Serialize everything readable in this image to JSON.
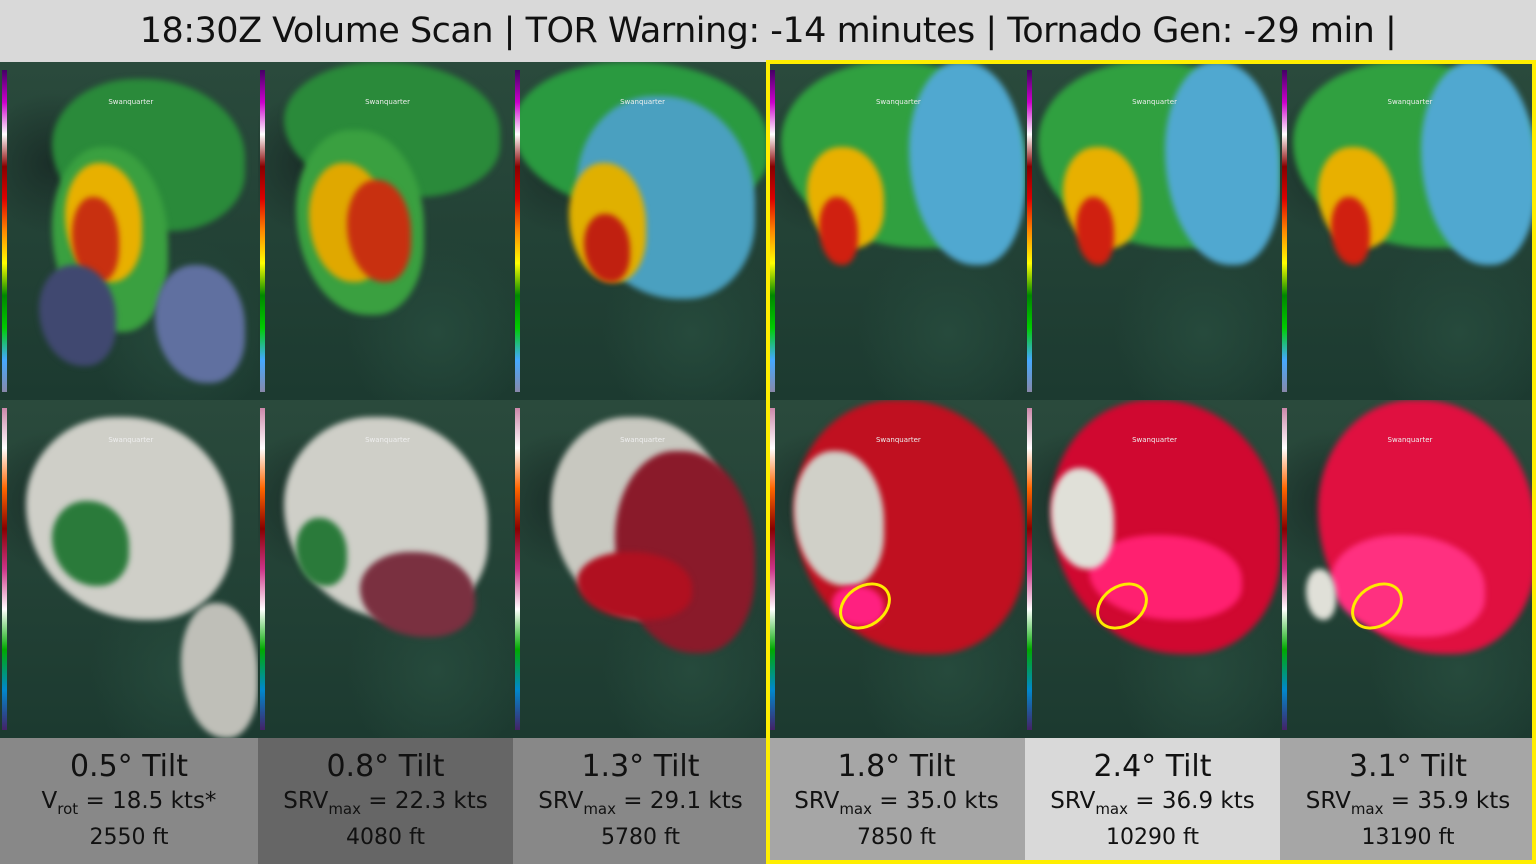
{
  "title": "18:30Z Volume Scan | TOR Warning: -14 minutes | Tornado Gen: -29 min |",
  "town_label": "Swanquarter",
  "highlight_color": "#ffee00",
  "columns": [
    {
      "tilt": "0.5° Tilt",
      "metric": "V",
      "metric_sub": "rot",
      "value": " = 18.5 kts*",
      "height": "2550 ft",
      "bg": "#888888"
    },
    {
      "tilt": "0.8° Tilt",
      "metric": "SRV",
      "metric_sub": "max",
      "value": " = 22.3 kts",
      "height": "4080 ft",
      "bg": "#666666"
    },
    {
      "tilt": "1.3° Tilt",
      "metric": "SRV",
      "metric_sub": "max",
      "value": " = 29.1 kts",
      "height": "5780 ft",
      "bg": "#888888"
    },
    {
      "tilt": "1.8° Tilt",
      "metric": "SRV",
      "metric_sub": "max",
      "value": " = 35.0 kts",
      "height": "7850 ft",
      "bg": "#a6a6a6"
    },
    {
      "tilt": "2.4° Tilt",
      "metric": "SRV",
      "metric_sub": "max",
      "value": " = 36.9 kts",
      "height": "10290 ft",
      "bg": "#d9d9d9"
    },
    {
      "tilt": "3.1° Tilt",
      "metric": "SRV",
      "metric_sub": "max",
      "value": " = 35.9 kts",
      "height": "13190 ft",
      "bg": "#a6a6a6"
    }
  ]
}
